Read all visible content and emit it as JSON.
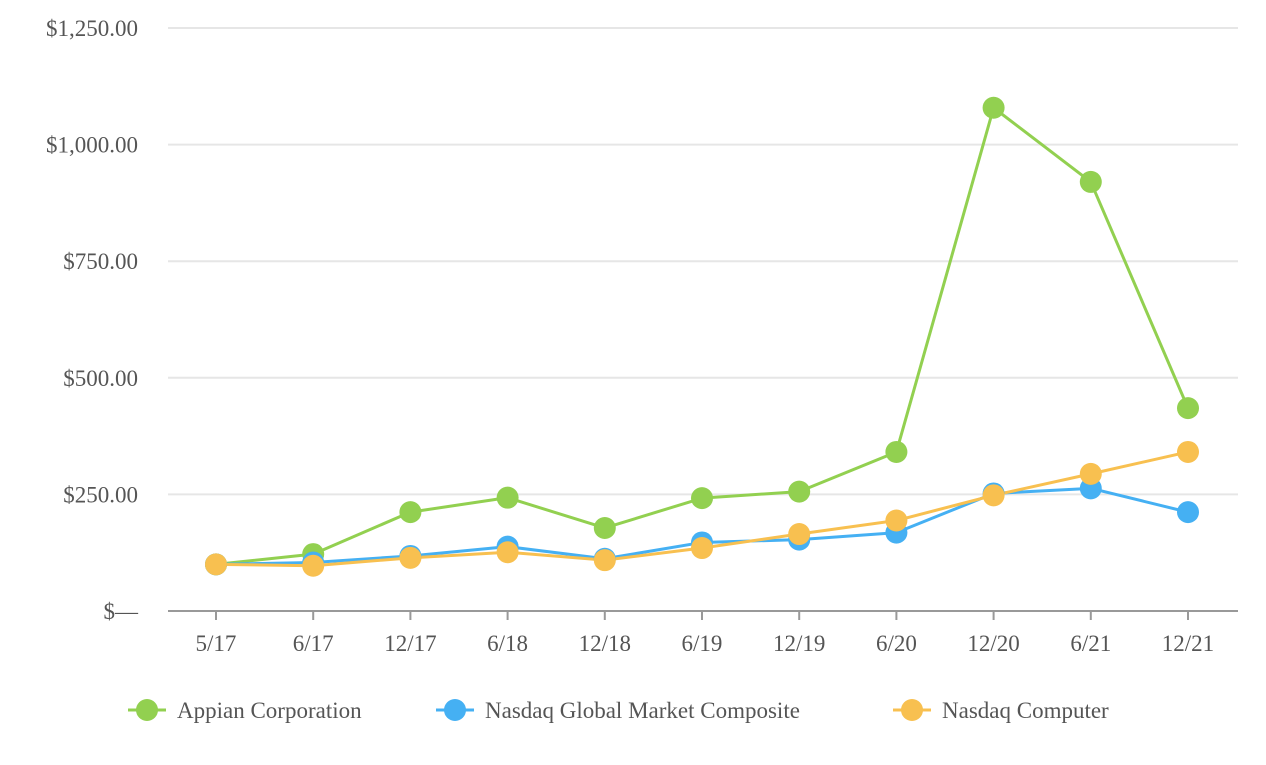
{
  "chart_data": {
    "type": "line",
    "title": "",
    "xlabel": "",
    "ylabel": "",
    "categories": [
      "5/17",
      "6/17",
      "12/17",
      "6/18",
      "12/18",
      "6/19",
      "12/19",
      "6/20",
      "12/20",
      "6/21",
      "12/21"
    ],
    "y_ticks": [
      0,
      250,
      500,
      750,
      1000,
      1250
    ],
    "y_tick_labels": [
      "$—",
      "$250.00",
      "$500.00",
      "$750.00",
      "$1,000.00",
      "$1,250.00"
    ],
    "ylim": [
      0,
      1250
    ],
    "grid": true,
    "legend_position": "bottom",
    "series": [
      {
        "name": "Appian Corporation",
        "color": "#92d050",
        "values": [
          100,
          122,
          212,
          243,
          178,
          242,
          256,
          341,
          1079,
          920,
          435
        ]
      },
      {
        "name": "Nasdaq Global Market Composite",
        "color": "#45b0f3",
        "values": [
          100,
          104,
          118,
          138,
          112,
          147,
          153,
          168,
          252,
          263,
          212
        ]
      },
      {
        "name": "Nasdaq Computer",
        "color": "#f8c050",
        "values": [
          100,
          97,
          114,
          126,
          109,
          135,
          165,
          194,
          248,
          294,
          341
        ]
      }
    ]
  }
}
